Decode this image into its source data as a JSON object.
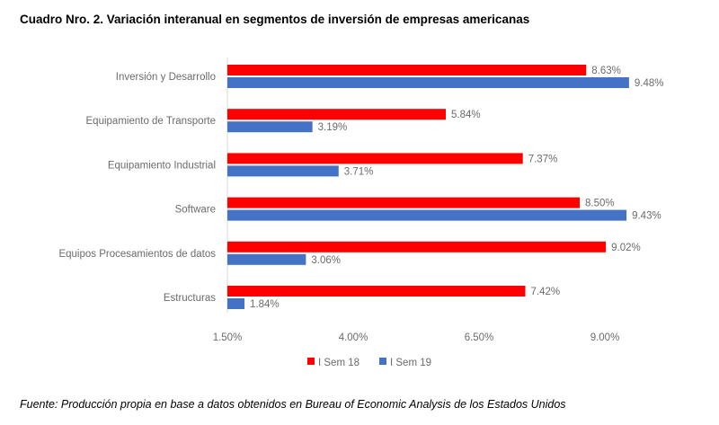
{
  "chart_data": {
    "type": "bar",
    "orientation": "horizontal",
    "title": "Cuadro Nro. 2. Variación interanual en segmentos de inversión de empresas americanas",
    "categories": [
      "Inversión y Desarrollo",
      "Equipamiento de Transporte",
      "Equipamiento Industrial",
      "Software",
      "Equipos Procesamientos de datos",
      "Estructuras"
    ],
    "series": [
      {
        "name": "I Sem 18",
        "color": "#ff0000",
        "values": [
          8.63,
          5.84,
          7.37,
          8.5,
          9.02,
          7.42
        ],
        "labels": [
          "8.63%",
          "5.84%",
          "7.37%",
          "8.50%",
          "9.02%",
          "7.42%"
        ]
      },
      {
        "name": "I Sem 19",
        "color": "#4472c4",
        "values": [
          9.48,
          3.19,
          3.71,
          9.43,
          3.06,
          1.84
        ],
        "labels": [
          "9.48%",
          "3.19%",
          "3.71%",
          "9.43%",
          "3.06%",
          "1.84%"
        ]
      }
    ],
    "xlim": [
      1.5,
      10
    ],
    "xticks": [
      1.5,
      4.0,
      6.5,
      9.0
    ],
    "xtick_labels": [
      "1.50%",
      "4.00%",
      "6.50%",
      "9.00%"
    ],
    "grid": false,
    "legend": "bottom"
  },
  "source": "Fuente: Producción propia en base a datos obtenidos en Bureau of Economic Analysis  de los Estados Unidos"
}
